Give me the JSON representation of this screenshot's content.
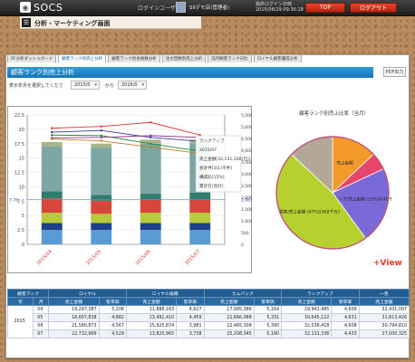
{
  "header": {
    "logo": "SOCS",
    "login_label": "ログインユーザー",
    "user_name": "SIIデモ店(管理者)",
    "last_login_label": "最終ログイン日時",
    "last_login_time": "2015/08/29 09:36:18",
    "top_button": "TOP",
    "logout_button": "ログアウト"
  },
  "breadcrumb": "分析・マーケティング画面",
  "tabs": [
    {
      "label": "RF分析ダッシュボード",
      "active": false
    },
    {
      "label": "顧客ランク別売上分析",
      "active": true
    },
    {
      "label": "顧客ランク別会員数分析",
      "active": false
    },
    {
      "label": "注文回数別売上分析",
      "active": false
    },
    {
      "label": "前月顧客ランク対比",
      "active": false
    },
    {
      "label": "ロイヤル顧客優成分析",
      "active": false
    }
  ],
  "section_title": "顧客ランク別売上分析",
  "pdf_button": "PDF出力",
  "period": {
    "label": "表示年月を選択してくださ",
    "from": "2015/0",
    "to_label": "から",
    "to": "2016/0"
  },
  "chart_data": [
    {
      "type": "bar",
      "stacked": true,
      "categories": [
        "2015/04",
        "2015/05",
        "2015/06",
        "2015/07"
      ],
      "series": [
        {
          "name": "",
          "color": "#5b9bd5",
          "values": [
            2.5,
            2.5,
            2.5,
            2.5
          ]
        },
        {
          "name": "",
          "color": "#1e3f8a",
          "values": [
            1.2,
            1.2,
            1.2,
            1.2
          ]
        },
        {
          "name": "",
          "color": "#b8ca3c",
          "values": [
            1.8,
            1.6,
            1.8,
            1.8
          ]
        },
        {
          "name": "",
          "color": "#d8453a",
          "values": [
            2.5,
            2.3,
            2.3,
            2.3
          ]
        },
        {
          "name": "",
          "color": "#2e7d6e",
          "values": [
            1.2,
            1.0,
            1.0,
            1.2
          ]
        },
        {
          "name": "",
          "color": "#7ba6a1",
          "values": [
            7.8,
            8.2,
            8.7,
            8.6
          ]
        },
        {
          "name": "",
          "color": "#a8b48a",
          "values": [
            0.8,
            0.7,
            0.7,
            0.6
          ]
        }
      ],
      "ylim": [
        0,
        22.5
      ],
      "yticks": [
        "0",
        "2.5",
        "5",
        "7.5",
        "10",
        "12.5",
        "15",
        "17.5",
        "20",
        "22.5"
      ],
      "y2ticks": [
        "0",
        "500",
        "1,000",
        "1,500",
        "2,000",
        "2,500",
        "3,000",
        "3,500",
        "4,000",
        "4,500",
        "5,000",
        "5,500"
      ],
      "y2marker": "1,963.45",
      "y1marker": "7.76",
      "tooltip": [
        "ランクアップ",
        "2015/07",
        "売上金額[32,131,336(元)]",
        "会計件[3(1)千件]",
        "構成比[15%]",
        "累計方(合計)"
      ]
    },
    {
      "type": "pie",
      "title": "顧客ランク別売上比率（当月）",
      "slices": [
        {
          "label": "売上金額",
          "value": 13,
          "color": "#f39a2b"
        },
        {
          "label": "",
          "value": 5,
          "color": "#e8456b"
        },
        {
          "label": "カムバック/売上金額 [22%][44][千万]",
          "value": 22,
          "color": "#7a6ad8"
        },
        {
          "label": "顧客/売上金額 [47%][36][千万]",
          "value": 47,
          "color": "#b6d12e"
        },
        {
          "label": "",
          "value": 13,
          "color": "#b3a898"
        }
      ]
    }
  ],
  "view_link": "+View",
  "table": {
    "head1": [
      "顧客ランク",
      "ロイヤル",
      "ロイヤル候補",
      "カムバック",
      "ランクアップ",
      "一見"
    ],
    "head2_left": [
      "年",
      "月"
    ],
    "head2_pair": [
      "売上金額",
      "客単価"
    ],
    "year": "2015",
    "rows": [
      {
        "month": "04",
        "cells": [
          "19,297,387",
          "5,208",
          "11,888,163",
          "4,627",
          "17,995,386",
          "5,164",
          "29,941,485",
          "4,609",
          "32,431,097"
        ]
      },
      {
        "month": "05",
        "cells": [
          "18,607,838",
          "4,882",
          "13,491,410",
          "4,459",
          "21,666,088",
          "5,331",
          "30,645,122",
          "4,631",
          "31,813,426"
        ]
      },
      {
        "month": "06",
        "cells": [
          "21,580,873",
          "4,567",
          "15,925,874",
          "3,981",
          "22,465,308",
          "5,390",
          "32,036,418",
          "4,608",
          "30,794,810"
        ]
      },
      {
        "month": "07",
        "cells": [
          "22,732,969",
          "4,529",
          "13,820,965",
          "3,738",
          "25,208,345",
          "5,190",
          "32,131,336",
          "4,433",
          "27,000,325"
        ]
      }
    ]
  }
}
